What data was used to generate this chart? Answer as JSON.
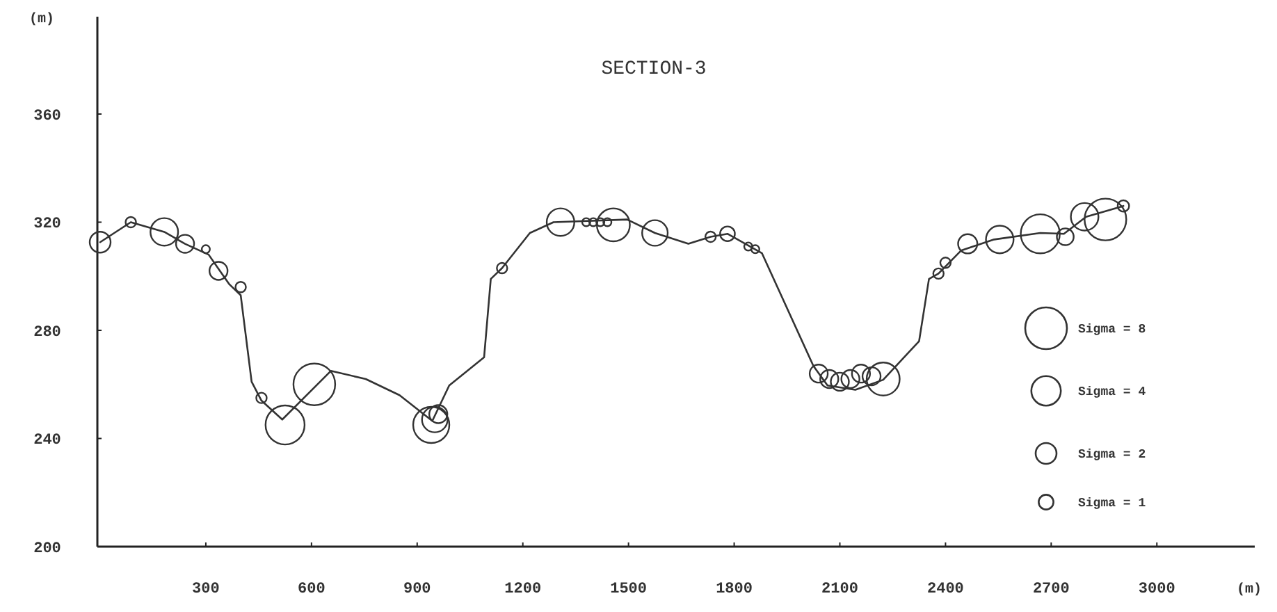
{
  "chart_data": {
    "type": "line",
    "title": "SECTION-3",
    "xlabel": "(m)",
    "ylabel": "(m)",
    "xlim": [
      0,
      3270
    ],
    "ylim": [
      200,
      396
    ],
    "xticks": [
      300,
      600,
      900,
      1200,
      1500,
      1800,
      2100,
      2400,
      2700,
      3000
    ],
    "yticks": [
      200,
      240,
      280,
      320,
      360
    ],
    "grid": false,
    "size_legend": [
      {
        "value": 8,
        "label": "Sigma = 8"
      },
      {
        "value": 4,
        "label": "Sigma = 4"
      },
      {
        "value": 2,
        "label": "Sigma = 2"
      },
      {
        "value": 1,
        "label": "Sigma = 1"
      }
    ],
    "series": [
      {
        "color": "#333333",
        "marker": "none",
        "line_style": "solid",
        "x": [
          0,
          87,
          182,
          241,
          308,
          340,
          367,
          399,
          430,
          458,
          517,
          655,
          754,
          850,
          943,
          991,
          1090,
          1109,
          1141,
          1220,
          1287,
          1496,
          1575,
          1670,
          1733,
          1781,
          1879,
          2025,
          2065,
          2144,
          2223,
          2325,
          2353,
          2380,
          2444,
          2538,
          2669,
          2736,
          2799,
          2905
        ],
        "values": [
          312.6,
          320,
          316.4,
          312,
          308,
          302,
          297,
          293,
          261,
          254,
          247,
          265,
          262,
          256,
          246.5,
          259.6,
          270,
          299,
          303,
          316,
          320,
          321,
          316,
          312,
          314.6,
          315.7,
          308.5,
          266.8,
          259.6,
          258,
          261.7,
          276,
          299,
          301,
          309.5,
          313.6,
          316,
          315.7,
          322,
          326
        ]
      },
      {
        "type": "bubble",
        "color": "#333333",
        "x": [
          0,
          87,
          182,
          241,
          300,
          336,
          399,
          458,
          525,
          608,
          940,
          950,
          960,
          1141,
          1307,
          1380,
          1400,
          1420,
          1440,
          1457,
          1575,
          1733,
          1781,
          1840,
          1860,
          2040,
          2070,
          2100,
          2130,
          2160,
          2190,
          2223,
          2380,
          2400,
          2463,
          2554,
          2669,
          2740,
          2795,
          2854,
          2905
        ],
        "values": [
          312.6,
          320,
          316.4,
          312,
          310,
          302,
          296,
          255,
          245,
          260,
          245,
          247,
          249,
          303,
          320,
          320,
          320,
          320,
          320,
          319,
          316,
          314.6,
          315.7,
          311,
          310,
          264,
          262,
          261,
          262,
          264,
          263,
          262,
          301,
          305,
          312,
          313.6,
          315.7,
          314.6,
          322,
          321,
          326
        ],
        "sizes": [
          2,
          0.5,
          3.5,
          1.5,
          0.3,
          1.5,
          0.5,
          0.5,
          7,
          8,
          6,
          3,
          1.5,
          0.5,
          3.5,
          0.3,
          0.3,
          0.3,
          0.3,
          5,
          3,
          0.5,
          1,
          0.3,
          0.3,
          1.5,
          1.5,
          1.5,
          1.5,
          1.5,
          1.5,
          5,
          0.5,
          0.5,
          1.7,
          3.5,
          7,
          1.3,
          3.5,
          8,
          0.6
        ]
      }
    ]
  }
}
